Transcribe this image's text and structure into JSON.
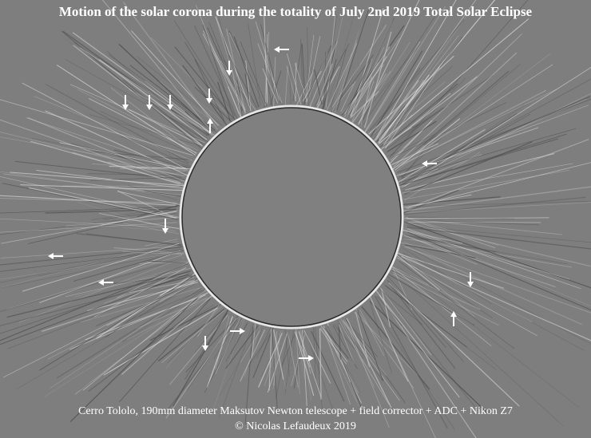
{
  "header": {
    "title": "Motion of the solar corona during the totality of July 2nd 2019 Total Solar Eclipse"
  },
  "caption": {
    "line1": "Cerro Tololo, 190mm diameter Maksutov Newton telescope + field corrector + ADC + Nikon Z7",
    "line2": "© Nicolas Lefaudeux 2019"
  }
}
